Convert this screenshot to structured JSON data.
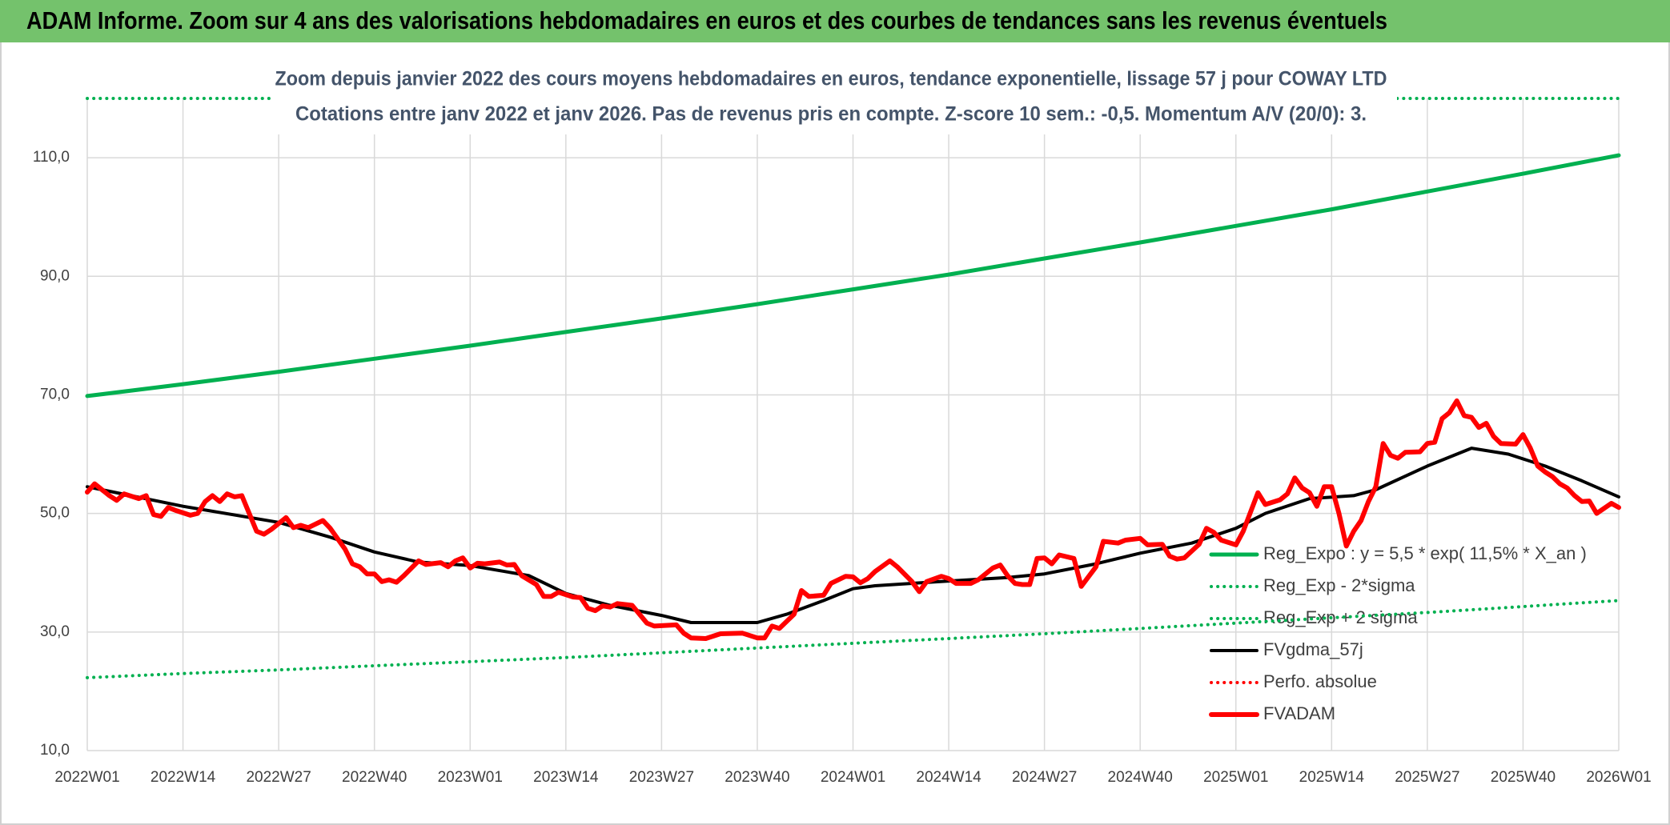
{
  "chart_data": {
    "type": "line",
    "title": "ADAM Informe. Zoom sur 4 ans des valorisations hebdomadaires en euros et des courbes de tendances sans les revenus éventuels",
    "subtitle": [
      "Zoom depuis janvier 2022 des cours moyens hebdomadaires en euros, tendance exponentielle, lissage 57 j pour COWAY LTD",
      "Cotations entre janv 2022 et janv 2026. Pas de revenus pris en compte. Z-score 10 sem.: -0,5. Momentum A/V (20/0): 3."
    ],
    "xlim": [
      0,
      208
    ],
    "xticks": [
      {
        "value": 0,
        "label": "2022W01"
      },
      {
        "value": 13,
        "label": "2022W14"
      },
      {
        "value": 26,
        "label": "2022W27"
      },
      {
        "value": 39,
        "label": "2022W40"
      },
      {
        "value": 52,
        "label": "2023W01"
      },
      {
        "value": 65,
        "label": "2023W14"
      },
      {
        "value": 78,
        "label": "2023W27"
      },
      {
        "value": 91,
        "label": "2023W40"
      },
      {
        "value": 104,
        "label": "2024W01"
      },
      {
        "value": 117,
        "label": "2024W14"
      },
      {
        "value": 130,
        "label": "2024W27"
      },
      {
        "value": 143,
        "label": "2024W40"
      },
      {
        "value": 156,
        "label": "2025W01"
      },
      {
        "value": 169,
        "label": "2025W14"
      },
      {
        "value": 182,
        "label": "2025W27"
      },
      {
        "value": 195,
        "label": "2025W40"
      },
      {
        "value": 208,
        "label": "2026W01"
      }
    ],
    "ylim": [
      10,
      120
    ],
    "yticks": [
      {
        "value": 10,
        "label": "10,0"
      },
      {
        "value": 30,
        "label": "30,0"
      },
      {
        "value": 50,
        "label": "50,0"
      },
      {
        "value": 70,
        "label": "70,0"
      },
      {
        "value": 90,
        "label": "90,0"
      },
      {
        "value": 110,
        "label": "110,0"
      }
    ],
    "grid": true,
    "legend": "lower right",
    "series": [
      {
        "name": "Reg_Expo : y = 5,5 * exp( 11,5% *  X_an )",
        "color": "#00b050",
        "line_style": "solid",
        "line_width": 5,
        "x": [
          0,
          13,
          26,
          39,
          52,
          65,
          78,
          91,
          104,
          117,
          130,
          143,
          156,
          169,
          182,
          195,
          208
        ],
        "values": [
          69.8,
          71.8,
          73.9,
          76.1,
          78.3,
          80.6,
          82.9,
          85.3,
          87.8,
          90.3,
          93.0,
          95.7,
          98.5,
          101.3,
          104.3,
          107.3,
          110.4
        ]
      },
      {
        "name": "Reg_Exp - 2*sigma",
        "color": "#00b050",
        "line_style": "dotted",
        "line_width": 4,
        "x": [
          0,
          13,
          26,
          39,
          52,
          65,
          78,
          91,
          104,
          117,
          130,
          143,
          156,
          169,
          182,
          195,
          208
        ],
        "values": [
          22.3,
          23.0,
          23.6,
          24.3,
          25.0,
          25.7,
          26.5,
          27.3,
          28.1,
          28.9,
          29.7,
          30.6,
          31.5,
          32.4,
          33.3,
          34.3,
          35.3
        ]
      },
      {
        "name": "Reg_Exp + 2 sigma",
        "color": "#00b050",
        "line_style": "dotted",
        "line_width": 4,
        "x": [
          0,
          208
        ],
        "values": [
          120,
          120
        ]
      },
      {
        "name": "FVgdma_57j",
        "color": "#000000",
        "line_style": "solid",
        "line_width": 4,
        "x": [
          0,
          13,
          26,
          33,
          39,
          45,
          52,
          60,
          65,
          71,
          78,
          82,
          91,
          95,
          100,
          104,
          107,
          117,
          125,
          130,
          137,
          143,
          150,
          156,
          160,
          166,
          172,
          175,
          182,
          188,
          193,
          198,
          203,
          208
        ],
        "values": [
          54.5,
          51.2,
          48.5,
          46.0,
          43.5,
          41.8,
          41.2,
          39.5,
          36.5,
          34.5,
          32.8,
          31.6,
          31.6,
          33.0,
          35.3,
          37.3,
          37.8,
          38.6,
          39.2,
          39.8,
          41.5,
          43.3,
          45.0,
          47.5,
          50.0,
          52.5,
          53.0,
          54.0,
          58.0,
          61.0,
          60.0,
          58.0,
          55.5,
          52.8
        ]
      },
      {
        "name": "Perfo. absolue",
        "color": "#ff0000",
        "line_style": "dotted",
        "line_width": 4,
        "x": [],
        "values": []
      },
      {
        "name": "FVADAM",
        "color": "#ff0000",
        "line_style": "solid",
        "line_width": 6,
        "x": [
          0,
          1,
          3,
          4,
          5,
          7,
          8,
          9,
          10,
          11,
          12,
          14,
          15,
          16,
          17,
          18,
          19,
          20,
          21,
          23,
          24,
          25,
          27,
          28,
          29,
          30,
          32,
          33,
          35,
          36,
          37,
          38,
          39,
          40,
          41,
          42,
          43,
          45,
          46,
          48,
          49,
          50,
          51,
          52,
          53,
          54,
          56,
          57,
          58,
          59,
          61,
          62,
          63,
          64,
          66,
          67,
          68,
          69,
          70,
          71,
          72,
          74,
          76,
          77,
          80,
          81,
          82,
          84,
          86,
          89,
          91,
          92,
          93,
          94,
          96,
          97,
          98,
          100,
          101,
          103,
          104,
          105,
          106,
          107,
          109,
          110,
          112,
          113,
          114,
          116,
          117,
          118,
          120,
          121,
          123,
          124,
          125,
          126,
          127,
          128,
          129,
          130,
          131,
          132,
          134,
          135,
          137,
          138,
          140,
          141,
          143,
          144,
          146,
          147,
          148,
          149,
          151,
          152,
          153,
          154,
          156,
          157,
          159,
          160,
          162,
          163,
          164,
          165,
          166,
          167,
          168,
          169,
          170,
          171,
          172,
          173,
          174,
          175,
          176,
          177,
          178,
          179,
          181,
          182,
          183,
          184,
          185,
          186,
          187,
          188,
          189,
          190,
          191,
          192,
          194,
          195,
          196,
          197,
          198,
          199,
          200,
          201,
          202,
          203,
          204,
          205,
          207,
          208
        ],
        "values": [
          53.6,
          55.0,
          53.0,
          52.2,
          53.3,
          52.5,
          53.0,
          49.8,
          49.5,
          51.0,
          50.5,
          49.7,
          50.0,
          52.0,
          53.0,
          52.0,
          53.3,
          52.8,
          53.0,
          47.0,
          46.5,
          47.3,
          49.3,
          47.6,
          48.0,
          47.6,
          48.8,
          47.5,
          44.0,
          41.5,
          41.0,
          39.8,
          39.8,
          38.5,
          38.8,
          38.4,
          39.5,
          42.0,
          41.4,
          41.7,
          41.0,
          42.0,
          42.5,
          40.8,
          41.6,
          41.5,
          41.8,
          41.3,
          41.4,
          39.5,
          38.0,
          36.0,
          36.0,
          36.7,
          35.9,
          35.8,
          34.0,
          33.6,
          34.4,
          34.2,
          34.8,
          34.5,
          31.5,
          31.0,
          31.2,
          29.8,
          29.0,
          28.9,
          29.7,
          29.8,
          29.0,
          29.0,
          31.0,
          30.6,
          33.0,
          37.0,
          36.0,
          36.2,
          38.2,
          39.4,
          39.3,
          38.3,
          39.0,
          40.2,
          42.0,
          41.0,
          38.5,
          36.8,
          38.5,
          39.4,
          39.0,
          38.2,
          38.2,
          38.8,
          40.8,
          41.3,
          39.5,
          38.2,
          38.0,
          38.0,
          42.4,
          42.5,
          41.5,
          43.0,
          42.4,
          37.7,
          41.0,
          45.3,
          45.0,
          45.5,
          45.8,
          44.7,
          44.8,
          42.8,
          42.3,
          42.5,
          44.8,
          47.5,
          46.8,
          45.5,
          44.7,
          47.0,
          53.5,
          51.5,
          52.3,
          53.3,
          56.0,
          54.3,
          53.5,
          51.2,
          54.5,
          54.5,
          50.0,
          44.5,
          47.0,
          48.8,
          52.0,
          54.5,
          61.8,
          59.8,
          59.3,
          60.3,
          60.4,
          61.8,
          62.0,
          66.0,
          67.0,
          69.0,
          66.5,
          66.2,
          64.5,
          65.2,
          63.0,
          61.8,
          61.7,
          63.3,
          61.0,
          58.0,
          57.0,
          56.2,
          55.0,
          54.3,
          53.0,
          52.0,
          52.1,
          50.0,
          51.7,
          51.0
        ]
      }
    ]
  }
}
